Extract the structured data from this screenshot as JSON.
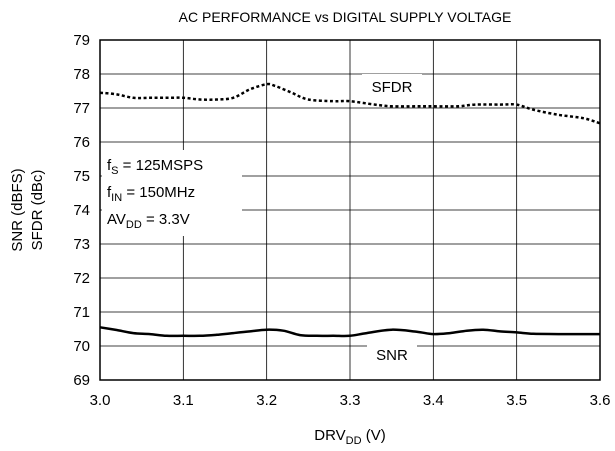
{
  "chart_data": {
    "type": "line",
    "title": "AC PERFORMANCE vs DIGITAL SUPPLY VOLTAGE",
    "xlabel": {
      "main": "DRV",
      "sub": "DD",
      "unit": " (V)"
    },
    "ylabel": [
      "SNR (dBFS)",
      "SFDR (dBc)"
    ],
    "xlim": [
      3.0,
      3.6
    ],
    "ylim": [
      69,
      79
    ],
    "xticks": [
      "3.0",
      "3.1",
      "3.2",
      "3.3",
      "3.4",
      "3.5",
      "3.6"
    ],
    "yticks": [
      "69",
      "70",
      "71",
      "72",
      "73",
      "74",
      "75",
      "76",
      "77",
      "78",
      "79"
    ],
    "grid": true,
    "annotations": [
      {
        "main": "f",
        "sub": "S",
        "rest": " = 125MSPS"
      },
      {
        "main": "f",
        "sub": "IN",
        "rest": " = 150MHz"
      },
      {
        "main": "AV",
        "sub": "DD",
        "rest": " = 3.3V"
      }
    ],
    "series": [
      {
        "name": "SFDR",
        "style": "dotted",
        "x": [
          3.0,
          3.02,
          3.04,
          3.06,
          3.08,
          3.1,
          3.12,
          3.14,
          3.16,
          3.18,
          3.2,
          3.21,
          3.23,
          3.25,
          3.28,
          3.3,
          3.33,
          3.35,
          3.38,
          3.4,
          3.43,
          3.45,
          3.48,
          3.5,
          3.52,
          3.55,
          3.58,
          3.6
        ],
        "y": [
          77.45,
          77.4,
          77.3,
          77.3,
          77.3,
          77.3,
          77.25,
          77.25,
          77.3,
          77.55,
          77.7,
          77.65,
          77.45,
          77.25,
          77.2,
          77.2,
          77.1,
          77.05,
          77.05,
          77.05,
          77.05,
          77.1,
          77.1,
          77.1,
          76.95,
          76.8,
          76.7,
          76.55
        ],
        "color": "#000000"
      },
      {
        "name": "SNR",
        "style": "solid",
        "x": [
          3.0,
          3.02,
          3.04,
          3.06,
          3.08,
          3.1,
          3.12,
          3.14,
          3.16,
          3.18,
          3.2,
          3.22,
          3.24,
          3.26,
          3.28,
          3.3,
          3.32,
          3.35,
          3.38,
          3.4,
          3.42,
          3.44,
          3.46,
          3.48,
          3.5,
          3.52,
          3.55,
          3.58,
          3.6
        ],
        "y": [
          70.55,
          70.47,
          70.38,
          70.35,
          70.3,
          70.3,
          70.3,
          70.33,
          70.38,
          70.43,
          70.48,
          70.45,
          70.32,
          70.3,
          70.3,
          70.3,
          70.38,
          70.48,
          70.42,
          70.35,
          70.38,
          70.45,
          70.48,
          70.43,
          70.4,
          70.36,
          70.35,
          70.35,
          70.35
        ],
        "color": "#000000"
      }
    ]
  }
}
